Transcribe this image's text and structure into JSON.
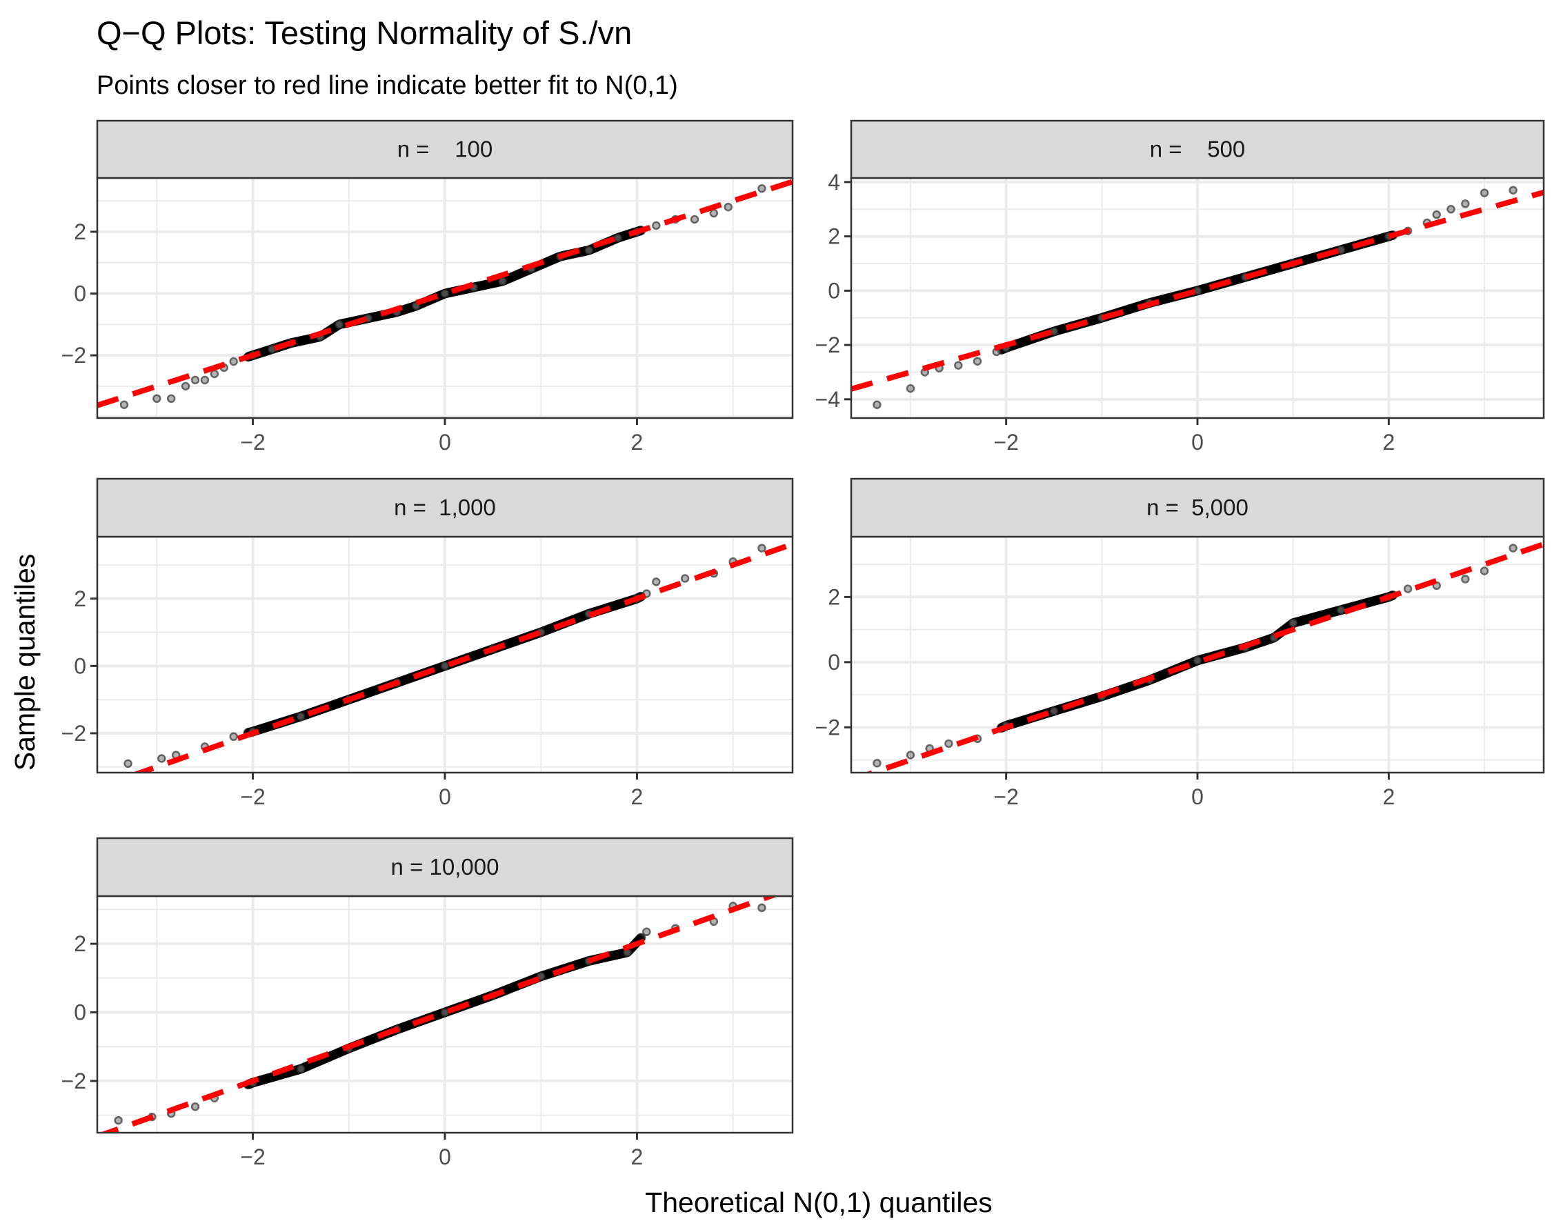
{
  "chart_data": {
    "type": "scatter",
    "title": "Q−Q Plots: Testing Normality of S./vn",
    "subtitle": "Points closer to red line indicate better fit to N(0,1)",
    "xlabel": "Theoretical N(0,1) quantiles",
    "ylabel": "Sample quantiles",
    "grid": true,
    "legend": "none",
    "colors": {
      "points": "#000000",
      "reference_line": "#ff0000",
      "strip_fill": "#d9d9d9",
      "grid": "#ebebeb",
      "border": "#333333"
    },
    "reference_line": {
      "slope": 1,
      "intercept": 0,
      "style": "dashed"
    },
    "xlim": [
      -3.62,
      3.62
    ],
    "x_ticks": [
      -2,
      0,
      2
    ],
    "panels": [
      {
        "label": "n =    100",
        "ylim": [
          -4.03,
          3.74
        ],
        "y_ticks": [
          -2,
          0,
          2
        ],
        "points": [
          [
            -3.34,
            -3.6
          ],
          [
            -3.0,
            -3.4
          ],
          [
            -2.85,
            -3.4
          ],
          [
            -2.7,
            -3.0
          ],
          [
            -2.6,
            -2.8
          ],
          [
            -2.5,
            -2.8
          ],
          [
            -2.4,
            -2.6
          ],
          [
            -2.3,
            -2.4
          ],
          [
            -2.2,
            -2.2
          ],
          [
            -2.0,
            -2.0
          ],
          [
            -1.8,
            -1.8
          ],
          [
            -1.6,
            -1.6
          ],
          [
            -1.3,
            -1.4
          ],
          [
            -1.1,
            -1.0
          ],
          [
            -0.8,
            -0.8
          ],
          [
            -0.5,
            -0.6
          ],
          [
            -0.3,
            -0.4
          ],
          [
            0,
            0
          ],
          [
            0.3,
            0.2
          ],
          [
            0.6,
            0.4
          ],
          [
            0.9,
            0.8
          ],
          [
            1.2,
            1.2
          ],
          [
            1.5,
            1.4
          ],
          [
            1.8,
            1.8
          ],
          [
            2.0,
            2.0
          ],
          [
            2.2,
            2.2
          ],
          [
            2.4,
            2.4
          ],
          [
            2.6,
            2.4
          ],
          [
            2.8,
            2.6
          ],
          [
            2.95,
            2.8
          ],
          [
            3.3,
            3.4
          ]
        ]
      },
      {
        "label": "n =    500",
        "ylim": [
          -4.69,
          4.15
        ],
        "y_ticks": [
          -4,
          -2,
          0,
          2,
          4
        ],
        "points": [
          [
            -3.35,
            -4.2
          ],
          [
            -3.0,
            -3.6
          ],
          [
            -2.85,
            -3.0
          ],
          [
            -2.7,
            -2.85
          ],
          [
            -2.5,
            -2.75
          ],
          [
            -2.3,
            -2.6
          ],
          [
            -2.1,
            -2.25
          ],
          [
            -2.0,
            -2.1
          ],
          [
            -1.5,
            -1.5
          ],
          [
            -1.0,
            -1.0
          ],
          [
            -0.5,
            -0.45
          ],
          [
            0,
            0
          ],
          [
            0.5,
            0.5
          ],
          [
            1.0,
            1.0
          ],
          [
            1.5,
            1.5
          ],
          [
            2.0,
            2.0
          ],
          [
            2.2,
            2.2
          ],
          [
            2.4,
            2.5
          ],
          [
            2.5,
            2.8
          ],
          [
            2.65,
            3.0
          ],
          [
            2.8,
            3.2
          ],
          [
            3.0,
            3.6
          ],
          [
            3.3,
            3.7
          ]
        ]
      },
      {
        "label": "n =  1,000",
        "ylim": [
          -3.17,
          3.84
        ],
        "y_ticks": [
          -2,
          0,
          2
        ],
        "points": [
          [
            -3.3,
            -2.9
          ],
          [
            -2.95,
            -2.75
          ],
          [
            -2.8,
            -2.65
          ],
          [
            -2.5,
            -2.4
          ],
          [
            -2.2,
            -2.1
          ],
          [
            -2.0,
            -1.95
          ],
          [
            -1.5,
            -1.5
          ],
          [
            -1.0,
            -1.0
          ],
          [
            -0.5,
            -0.5
          ],
          [
            0,
            0
          ],
          [
            0.5,
            0.5
          ],
          [
            1.0,
            1.0
          ],
          [
            1.5,
            1.55
          ],
          [
            2.0,
            2.0
          ],
          [
            2.1,
            2.15
          ],
          [
            2.2,
            2.5
          ],
          [
            2.5,
            2.6
          ],
          [
            2.8,
            2.75
          ],
          [
            3.0,
            3.1
          ],
          [
            3.3,
            3.5
          ]
        ]
      },
      {
        "label": "n =  5,000",
        "ylim": [
          -3.39,
          3.85
        ],
        "y_ticks": [
          -2,
          0,
          2
        ],
        "points": [
          [
            -3.35,
            -3.1
          ],
          [
            -3.0,
            -2.85
          ],
          [
            -2.8,
            -2.65
          ],
          [
            -2.6,
            -2.5
          ],
          [
            -2.3,
            -2.35
          ],
          [
            -2.0,
            -1.95
          ],
          [
            -1.5,
            -1.5
          ],
          [
            -1.0,
            -1.05
          ],
          [
            -0.5,
            -0.55
          ],
          [
            0,
            0.05
          ],
          [
            0.5,
            0.45
          ],
          [
            0.8,
            0.75
          ],
          [
            1.0,
            1.2
          ],
          [
            1.5,
            1.6
          ],
          [
            2.0,
            2.0
          ],
          [
            2.2,
            2.25
          ],
          [
            2.5,
            2.35
          ],
          [
            2.8,
            2.55
          ],
          [
            3.0,
            2.8
          ],
          [
            3.3,
            3.5
          ]
        ]
      },
      {
        "label": "n = 10,000",
        "ylim": [
          -3.51,
          3.39
        ],
        "y_ticks": [
          -2,
          0,
          2
        ],
        "points": [
          [
            -3.4,
            -3.15
          ],
          [
            -3.05,
            -3.05
          ],
          [
            -2.85,
            -2.95
          ],
          [
            -2.6,
            -2.75
          ],
          [
            -2.4,
            -2.5
          ],
          [
            -2.0,
            -2.05
          ],
          [
            -1.5,
            -1.65
          ],
          [
            -1.0,
            -1.05
          ],
          [
            -0.5,
            -0.5
          ],
          [
            0,
            0
          ],
          [
            0.5,
            0.5
          ],
          [
            1.0,
            1.05
          ],
          [
            1.5,
            1.5
          ],
          [
            1.9,
            1.75
          ],
          [
            2.1,
            2.35
          ],
          [
            2.4,
            2.45
          ],
          [
            2.8,
            2.65
          ],
          [
            3.0,
            3.1
          ],
          [
            3.3,
            3.05
          ]
        ]
      }
    ]
  }
}
